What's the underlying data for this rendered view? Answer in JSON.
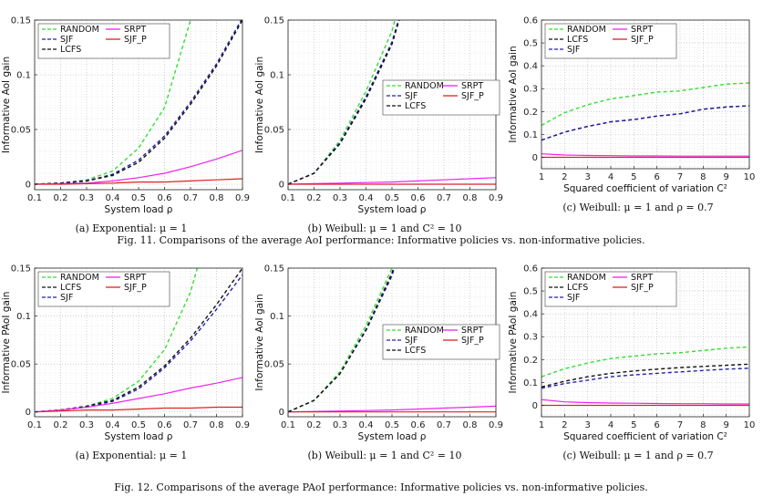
{
  "figures": [
    {
      "caption": "Fig. 11.  Comparisons of the average AoI performance: Informative policies vs. non-informative policies."
    },
    {
      "caption": "Fig. 12.  Comparisons of the average PAoI performance: Informative policies vs. non-informative policies."
    }
  ],
  "colors": {
    "RANDOM": "#33dd33",
    "SJF": "#2222aa",
    "LCFS": "#111111",
    "SRPT": "#ee22ee",
    "SJF_P": "#dd2222"
  },
  "chart_data": [
    {
      "type": "line",
      "subcaption": "(a) Exponential: μ = 1",
      "xlabel": "System load ρ",
      "ylabel": "Informative AoI gain",
      "xlim": [
        0.1,
        0.9
      ],
      "ylim": [
        -0.005,
        0.15
      ],
      "xticks": [
        0.1,
        0.2,
        0.3,
        0.4,
        0.5,
        0.6,
        0.7,
        0.8,
        0.9
      ],
      "xticklabels": [
        "0.1",
        "0.2",
        "0.3",
        "0.4",
        "0.5",
        "0.6",
        "0.7",
        "0.8",
        "0.9"
      ],
      "yticks": [
        0,
        0.05,
        0.1,
        0.15
      ],
      "yticklabels": [
        "0",
        "0.05",
        "0.1",
        "0.15"
      ],
      "grid": true,
      "legend": {
        "position": "top-left",
        "columns": [
          [
            "RANDOM",
            "SJF",
            "LCFS"
          ],
          [
            "SRPT",
            "SJF_P"
          ]
        ]
      },
      "x": [
        0.1,
        0.2,
        0.3,
        0.4,
        0.5,
        0.6,
        0.7,
        0.8,
        0.9
      ],
      "series": [
        {
          "name": "RANDOM",
          "style": "dashed",
          "values": [
            0,
            0.001,
            0.004,
            0.012,
            0.033,
            0.07,
            0.15,
            null,
            null
          ]
        },
        {
          "name": "SJF",
          "style": "dashed",
          "values": [
            0,
            0.001,
            0.003,
            0.009,
            0.022,
            0.044,
            0.075,
            0.11,
            0.152
          ]
        },
        {
          "name": "LCFS",
          "style": "dashed",
          "values": [
            0,
            0.001,
            0.003,
            0.008,
            0.02,
            0.042,
            0.073,
            0.108,
            0.15
          ]
        },
        {
          "name": "SRPT",
          "style": "solid",
          "values": [
            0,
            0.0005,
            0.001,
            0.003,
            0.006,
            0.01,
            0.016,
            0.023,
            0.031
          ]
        },
        {
          "name": "SJF_P",
          "style": "solid",
          "values": [
            0,
            0,
            0.0005,
            0.001,
            0.002,
            0.002,
            0.003,
            0.004,
            0.005
          ]
        }
      ]
    },
    {
      "type": "line",
      "subcaption": "(b) Weibull: μ = 1 and C² = 10",
      "xlabel": "System load ρ",
      "ylabel": "Informative AoI gain",
      "xlim": [
        0.1,
        0.9
      ],
      "ylim": [
        -0.005,
        0.15
      ],
      "xticks": [
        0.1,
        0.2,
        0.3,
        0.4,
        0.5,
        0.6,
        0.7,
        0.8,
        0.9
      ],
      "xticklabels": [
        "0.1",
        "0.2",
        "0.3",
        "0.4",
        "0.5",
        "0.6",
        "0.7",
        "0.8",
        "0.9"
      ],
      "yticks": [
        0,
        0.05,
        0.1,
        0.15
      ],
      "yticklabels": [
        "0",
        "0.05",
        "0.1",
        "0.15"
      ],
      "grid": true,
      "legend": {
        "position": "center-right",
        "columns": [
          [
            "RANDOM",
            "SJF",
            "LCFS"
          ],
          [
            "SRPT",
            "SJF_P"
          ]
        ]
      },
      "x": [
        0.1,
        0.2,
        0.3,
        0.4,
        0.5,
        0.6,
        0.7,
        0.8,
        0.9
      ],
      "series": [
        {
          "name": "RANDOM",
          "style": "dashed",
          "values": [
            0,
            0.01,
            0.04,
            0.085,
            0.14,
            null,
            null,
            null,
            null
          ]
        },
        {
          "name": "SJF",
          "style": "dashed",
          "values": [
            0,
            0.01,
            0.038,
            0.08,
            0.13,
            null,
            null,
            null,
            null
          ]
        },
        {
          "name": "LCFS",
          "style": "dashed",
          "values": [
            0,
            0.01,
            0.037,
            0.078,
            0.128,
            null,
            null,
            null,
            null
          ]
        },
        {
          "name": "SRPT",
          "style": "solid",
          "values": [
            0,
            0.0005,
            0.001,
            0.0015,
            0.002,
            0.003,
            0.004,
            0.005,
            0.006
          ]
        },
        {
          "name": "SJF_P",
          "style": "solid",
          "values": [
            0,
            0,
            0,
            0,
            0,
            0,
            0,
            0,
            0
          ]
        }
      ]
    },
    {
      "type": "line",
      "subcaption": "(c) Weibull: μ = 1 and ρ = 0.7",
      "xlabel": "Squared coefficient of variation C²",
      "ylabel": "Informative AoI gain",
      "xlim": [
        1,
        10
      ],
      "ylim": [
        -0.05,
        0.6
      ],
      "xticks": [
        1,
        2,
        3,
        4,
        5,
        6,
        7,
        8,
        9,
        10
      ],
      "xticklabels": [
        "1",
        "2",
        "3",
        "4",
        "5",
        "6",
        "7",
        "8",
        "9",
        "10"
      ],
      "yticks": [
        0,
        0.1,
        0.2,
        0.3,
        0.4,
        0.5,
        0.6
      ],
      "yticklabels": [
        "0",
        "0.1",
        "0.2",
        "0.3",
        "0.4",
        "0.5",
        "0.6"
      ],
      "grid": true,
      "legend": {
        "position": "top-left",
        "columns": [
          [
            "RANDOM",
            "LCFS",
            "SJF"
          ],
          [
            "SRPT",
            "SJF_P"
          ]
        ]
      },
      "x": [
        1,
        2,
        3,
        4,
        5,
        6,
        7,
        8,
        9,
        10
      ],
      "series": [
        {
          "name": "RANDOM",
          "style": "dashed",
          "values": [
            0.14,
            0.195,
            0.23,
            0.255,
            0.27,
            0.285,
            0.29,
            0.305,
            0.32,
            0.325
          ]
        },
        {
          "name": "LCFS",
          "style": "dashed",
          "values": [
            0.075,
            0.11,
            0.135,
            0.155,
            0.165,
            0.18,
            0.19,
            0.21,
            0.22,
            0.225
          ]
        },
        {
          "name": "SJF",
          "style": "dashed",
          "values": [
            0.075,
            0.11,
            0.135,
            0.155,
            0.165,
            0.18,
            0.19,
            0.21,
            0.22,
            0.225
          ]
        },
        {
          "name": "SRPT",
          "style": "solid",
          "values": [
            0.015,
            0.01,
            0.008,
            0.007,
            0.006,
            0.006,
            0.005,
            0.005,
            0.005,
            0.005
          ]
        },
        {
          "name": "SJF_P",
          "style": "solid",
          "values": [
            0,
            0,
            0,
            0,
            0,
            0,
            0,
            0,
            0,
            0
          ]
        }
      ]
    },
    {
      "type": "line",
      "subcaption": "(a) Exponential: μ = 1",
      "xlabel": "System load ρ",
      "ylabel": "Informative PAoI gain",
      "xlim": [
        0.1,
        0.9
      ],
      "ylim": [
        -0.005,
        0.15
      ],
      "xticks": [
        0.1,
        0.2,
        0.3,
        0.4,
        0.5,
        0.6,
        0.7,
        0.8,
        0.9
      ],
      "xticklabels": [
        "0.1",
        "0.2",
        "0.3",
        "0.4",
        "0.5",
        "0.6",
        "0.7",
        "0.8",
        "0.9"
      ],
      "yticks": [
        0,
        0.05,
        0.1,
        0.15
      ],
      "yticklabels": [
        "0",
        "0.05",
        "0.1",
        "0.15"
      ],
      "grid": true,
      "legend": {
        "position": "top-left",
        "columns": [
          [
            "RANDOM",
            "LCFS",
            "SJF"
          ],
          [
            "SRPT",
            "SJF_P"
          ]
        ]
      },
      "x": [
        0.1,
        0.2,
        0.3,
        0.4,
        0.5,
        0.6,
        0.7,
        0.8,
        0.9
      ],
      "series": [
        {
          "name": "RANDOM",
          "style": "dashed",
          "values": [
            0,
            0.002,
            0.006,
            0.014,
            0.032,
            0.065,
            0.125,
            null,
            null
          ]
        },
        {
          "name": "LCFS",
          "style": "dashed",
          "values": [
            0,
            0.002,
            0.006,
            0.012,
            0.026,
            0.048,
            0.077,
            0.112,
            0.15
          ]
        },
        {
          "name": "SJF",
          "style": "dashed",
          "values": [
            0,
            0.002,
            0.005,
            0.011,
            0.024,
            0.046,
            0.074,
            0.107,
            0.143
          ]
        },
        {
          "name": "SRPT",
          "style": "solid",
          "values": [
            0,
            0.002,
            0.005,
            0.009,
            0.014,
            0.019,
            0.025,
            0.03,
            0.036
          ]
        },
        {
          "name": "SJF_P",
          "style": "solid",
          "values": [
            0,
            0.001,
            0.002,
            0.002,
            0.003,
            0.004,
            0.004,
            0.005,
            0.005
          ]
        }
      ]
    },
    {
      "type": "line",
      "subcaption": "(b) Weibull: μ = 1 and C² = 10",
      "xlabel": "System load ρ",
      "ylabel": "Informative AoI gain",
      "xlim": [
        0.1,
        0.9
      ],
      "ylim": [
        -0.005,
        0.15
      ],
      "xticks": [
        0.1,
        0.2,
        0.3,
        0.4,
        0.5,
        0.6,
        0.7,
        0.8,
        0.9
      ],
      "xticklabels": [
        "0.1",
        "0.2",
        "0.3",
        "0.4",
        "0.5",
        "0.6",
        "0.7",
        "0.8",
        "0.9"
      ],
      "yticks": [
        0,
        0.05,
        0.1,
        0.15
      ],
      "yticklabels": [
        "0",
        "0.05",
        "0.1",
        "0.15"
      ],
      "grid": true,
      "legend": {
        "position": "center-right",
        "columns": [
          [
            "RANDOM",
            "SJF",
            "LCFS"
          ],
          [
            "SRPT",
            "SJF_P"
          ]
        ]
      },
      "x": [
        0.1,
        0.2,
        0.3,
        0.4,
        0.5,
        0.6,
        0.7,
        0.8,
        0.9
      ],
      "series": [
        {
          "name": "RANDOM",
          "style": "dashed",
          "values": [
            0,
            0.012,
            0.042,
            0.09,
            0.15,
            null,
            null,
            null,
            null
          ]
        },
        {
          "name": "SJF",
          "style": "dashed",
          "values": [
            0,
            0.012,
            0.04,
            0.085,
            0.142,
            null,
            null,
            null,
            null
          ]
        },
        {
          "name": "LCFS",
          "style": "dashed",
          "values": [
            0,
            0.012,
            0.04,
            0.086,
            0.145,
            null,
            null,
            null,
            null
          ]
        },
        {
          "name": "SRPT",
          "style": "solid",
          "values": [
            0,
            0.0005,
            0.001,
            0.0015,
            0.002,
            0.003,
            0.004,
            0.005,
            0.006
          ]
        },
        {
          "name": "SJF_P",
          "style": "solid",
          "values": [
            0,
            0,
            0,
            0,
            0,
            0,
            0,
            0,
            0
          ]
        }
      ]
    },
    {
      "type": "line",
      "subcaption": "(c) Weibull: μ = 1 and ρ = 0.7",
      "xlabel": "Squared coefficient of variation C²",
      "ylabel": "Informative PAoI gain",
      "xlim": [
        1,
        10
      ],
      "ylim": [
        -0.05,
        0.6
      ],
      "xticks": [
        1,
        2,
        3,
        4,
        5,
        6,
        7,
        8,
        9,
        10
      ],
      "xticklabels": [
        "1",
        "2",
        "3",
        "4",
        "5",
        "6",
        "7",
        "8",
        "9",
        "10"
      ],
      "yticks": [
        0,
        0.1,
        0.2,
        0.3,
        0.4,
        0.5,
        0.6
      ],
      "yticklabels": [
        "0",
        "0.1",
        "0.2",
        "0.3",
        "0.4",
        "0.5",
        "0.6"
      ],
      "grid": true,
      "legend": {
        "position": "top-left",
        "columns": [
          [
            "RANDOM",
            "LCFS",
            "SJF"
          ],
          [
            "SRPT",
            "SJF_P"
          ]
        ]
      },
      "x": [
        1,
        2,
        3,
        4,
        5,
        6,
        7,
        8,
        9,
        10
      ],
      "series": [
        {
          "name": "RANDOM",
          "style": "dashed",
          "values": [
            0.125,
            0.16,
            0.185,
            0.205,
            0.215,
            0.225,
            0.23,
            0.24,
            0.25,
            0.255
          ]
        },
        {
          "name": "LCFS",
          "style": "dashed",
          "values": [
            0.08,
            0.105,
            0.125,
            0.14,
            0.15,
            0.158,
            0.165,
            0.17,
            0.175,
            0.18
          ]
        },
        {
          "name": "SJF",
          "style": "dashed",
          "values": [
            0.075,
            0.095,
            0.11,
            0.125,
            0.133,
            0.14,
            0.146,
            0.152,
            0.158,
            0.162
          ]
        },
        {
          "name": "SRPT",
          "style": "solid",
          "values": [
            0.025,
            0.015,
            0.012,
            0.01,
            0.009,
            0.008,
            0.007,
            0.007,
            0.006,
            0.006
          ]
        },
        {
          "name": "SJF_P",
          "style": "solid",
          "values": [
            0,
            0,
            0,
            0,
            0,
            0,
            0,
            0,
            0,
            0
          ]
        }
      ]
    }
  ]
}
